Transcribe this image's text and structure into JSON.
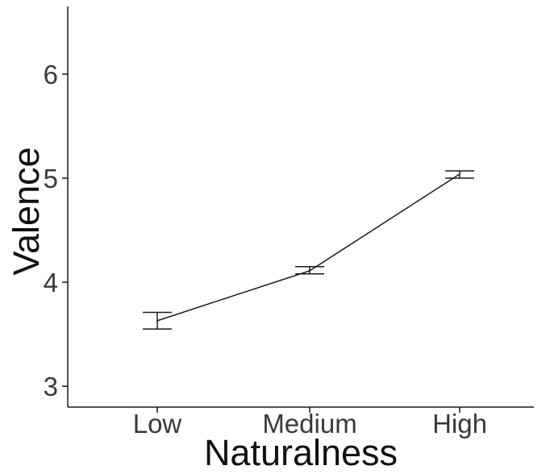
{
  "chart_data": {
    "type": "line",
    "title": "",
    "xlabel": "Naturalness",
    "ylabel": "Valence",
    "categories": [
      "Low",
      "Medium",
      "High"
    ],
    "series": [
      {
        "values": [
          3.63,
          4.11,
          5.04
        ],
        "error_low": [
          3.55,
          4.08,
          5.0
        ],
        "error_high": [
          3.71,
          4.15,
          5.07
        ]
      }
    ],
    "ylim": [
      2.8,
      6.65
    ],
    "yticks": [
      3,
      4,
      5,
      6
    ],
    "ytick_labels": [
      "3",
      "4",
      "5",
      "6"
    ],
    "grid": false,
    "legend": "none",
    "colors": {
      "line": "#1a1a1a",
      "axis": "#1a1a1a",
      "text": "#3a3a3a"
    }
  }
}
